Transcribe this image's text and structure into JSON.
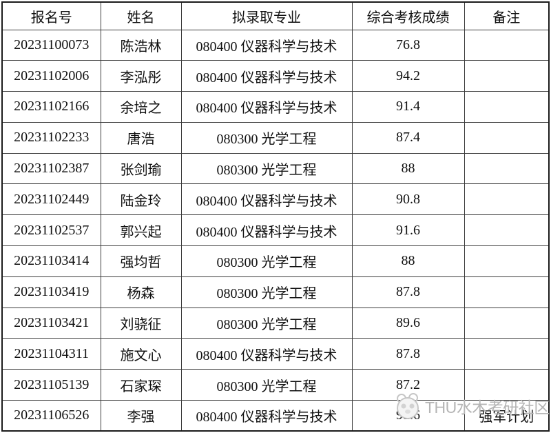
{
  "table": {
    "headers": [
      "报名号",
      "姓名",
      "拟录取专业",
      "综合考核成绩",
      "备注"
    ],
    "columns": [
      "application_no",
      "name",
      "major",
      "score",
      "remark"
    ],
    "rows": [
      [
        "20231100073",
        "陈浩林",
        "080400 仪器科学与技术",
        "76.8",
        ""
      ],
      [
        "20231102006",
        "李泓彤",
        "080400 仪器科学与技术",
        "94.2",
        ""
      ],
      [
        "20231102166",
        "余培之",
        "080400 仪器科学与技术",
        "91.4",
        ""
      ],
      [
        "20231102233",
        "唐浩",
        "080300 光学工程",
        "87.4",
        ""
      ],
      [
        "20231102387",
        "张剑瑜",
        "080300 光学工程",
        "88",
        ""
      ],
      [
        "20231102449",
        "陆金玲",
        "080400 仪器科学与技术",
        "90.8",
        ""
      ],
      [
        "20231102537",
        "郭兴起",
        "080400 仪器科学与技术",
        "91.6",
        ""
      ],
      [
        "20231103414",
        "强均哲",
        "080300 光学工程",
        "88",
        ""
      ],
      [
        "20231103419",
        "杨森",
        "080300 光学工程",
        "87.8",
        ""
      ],
      [
        "20231103421",
        "刘骁征",
        "080300 光学工程",
        "89.6",
        ""
      ],
      [
        "20231104311",
        "施文心",
        "080400 仪器科学与技术",
        "87.8",
        ""
      ],
      [
        "20231105139",
        "石家琛",
        "080300 光学工程",
        "87.2",
        ""
      ],
      [
        "20231106526",
        "李强",
        "080400 仪器科学与技术",
        "91.6",
        "强军计划"
      ]
    ]
  },
  "watermark": {
    "text": "THU水木考研社区",
    "logo": "panda-logo-icon",
    "color": "#b5b5b5"
  },
  "colors": {
    "outer_border": "#1a1a1a",
    "inner_border": "#3a3a3a",
    "text": "#111111",
    "background": "#ffffff"
  }
}
